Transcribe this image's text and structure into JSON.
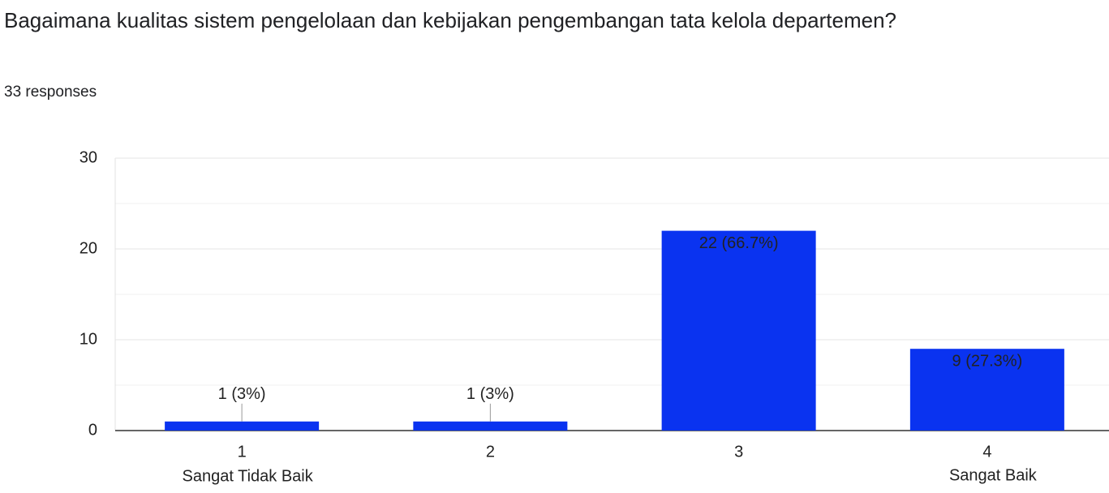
{
  "chart_data": {
    "type": "bar",
    "title": "Bagaimana kualitas sistem pengelolaan dan kebijakan pengembangan tata kelola departemen?",
    "subtitle": "33 responses",
    "categories": [
      "1",
      "2",
      "3",
      "4"
    ],
    "values": [
      1,
      1,
      22,
      9
    ],
    "value_labels": [
      "1 (3%)",
      "1 (3%)",
      "22 (66.7%)",
      "9 (27.3%)"
    ],
    "scale_labels": {
      "low": "Sangat Tidak Baik",
      "high": "Sangat Baik"
    },
    "color": "#0a33f0",
    "ylim": [
      0,
      30
    ],
    "yticks": [
      0,
      10,
      20,
      30
    ],
    "minor_gridlines": [
      5,
      15,
      25
    ],
    "grid": true
  }
}
